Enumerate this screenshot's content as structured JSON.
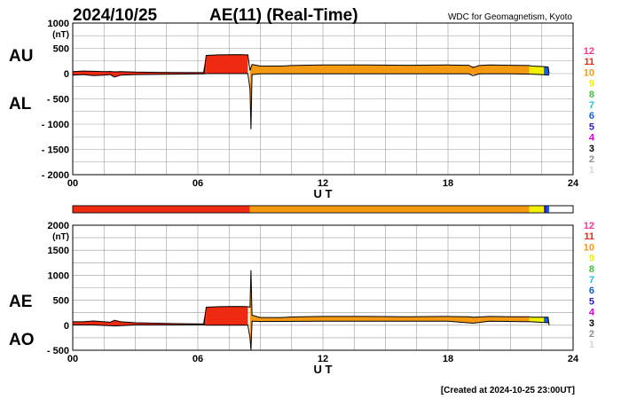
{
  "header": {
    "date": "2024/10/25",
    "title": "AE(11) (Real-Time)",
    "source": "WDC for Geomagnetism, Kyoto"
  },
  "footer": {
    "created": "[Created at 2024-10-25 23:00UT]"
  },
  "colors": {
    "grid": "#9a9a9a",
    "level_colors": {
      "1": "#d8d8d8",
      "2": "#909090",
      "3": "#000000",
      "4": "#e000e0",
      "5": "#3020c0",
      "6": "#1060e0",
      "7": "#20c0e0",
      "8": "#40c040",
      "9": "#f0f000",
      "10": "#f59a10",
      "11": "#ee2a10",
      "12": "#ff3399"
    }
  },
  "legend": {
    "levels": [
      "12",
      "11",
      "10",
      "9",
      "8",
      "7",
      "6",
      "5",
      "4",
      "3",
      "2",
      "1"
    ]
  },
  "chart_data": [
    {
      "type": "area",
      "id": "au_al",
      "xlabel": "U T",
      "ylabel_unit": "(nT)",
      "side_labels": [
        "AU",
        "AL"
      ],
      "xlim": [
        0,
        24
      ],
      "ylim": [
        -2000,
        1000
      ],
      "xticks": [
        0,
        6,
        12,
        18,
        24
      ],
      "xtick_labels": [
        "00",
        "06",
        "12",
        "18",
        "24"
      ],
      "yticks": [
        1000,
        500,
        0,
        -500,
        -1000,
        -1500,
        -2000
      ],
      "ytick_labels": [
        "1000",
        "500",
        "0",
        "- 500",
        "- 1000",
        "- 1500",
        "- 2000"
      ],
      "grid": true,
      "series": [
        {
          "name": "AU",
          "x": [
            0,
            0.5,
            1,
            1.5,
            1.8,
            2.0,
            2.3,
            3,
            4,
            5,
            6.3,
            6.4,
            7,
            8,
            8.4,
            8.5,
            8.6,
            9,
            10,
            10.5,
            11,
            12,
            14,
            16,
            18,
            19,
            19.2,
            19.5,
            20,
            21,
            21.9,
            22,
            22.5,
            22.8,
            22.85
          ],
          "values": [
            40,
            50,
            45,
            40,
            42,
            35,
            40,
            30,
            25,
            22,
            20,
            360,
            370,
            375,
            370,
            60,
            180,
            150,
            150,
            160,
            165,
            170,
            170,
            165,
            170,
            165,
            120,
            160,
            170,
            165,
            160,
            150,
            140,
            130,
            0
          ]
        },
        {
          "name": "AL",
          "x": [
            0,
            0.5,
            1,
            1.5,
            1.8,
            2.0,
            2.3,
            3,
            4,
            5,
            6.3,
            6.4,
            7,
            8,
            8.4,
            8.5,
            8.55,
            8.6,
            9,
            10,
            11,
            12,
            14,
            16,
            18,
            19,
            19.2,
            19.5,
            20,
            21,
            22,
            22.5,
            22.85
          ],
          "values": [
            -30,
            -20,
            -40,
            -30,
            -20,
            -70,
            -30,
            -20,
            -15,
            -10,
            -5,
            0,
            0,
            0,
            0,
            -300,
            -1100,
            -20,
            -5,
            -5,
            -5,
            -5,
            -5,
            -5,
            -5,
            -5,
            -40,
            -5,
            -5,
            -5,
            -10,
            -20,
            -30
          ]
        }
      ],
      "activity_bands": [
        {
          "x": [
            6.4,
            8.4
          ],
          "level": "11"
        },
        {
          "x": [
            8.5,
            10.5
          ],
          "level": "10"
        },
        {
          "x": [
            10.5,
            21.9
          ],
          "level": "10"
        },
        {
          "x": [
            21.9,
            22.6
          ],
          "level": "9"
        },
        {
          "x": [
            22.6,
            22.85
          ],
          "level": "6"
        }
      ]
    },
    {
      "type": "area",
      "id": "ae_ao",
      "xlabel": "U T",
      "ylabel_unit": "(nT)",
      "side_labels": [
        "AE",
        "AO"
      ],
      "xlim": [
        0,
        24
      ],
      "ylim": [
        -500,
        2000
      ],
      "xticks": [
        0,
        6,
        12,
        18,
        24
      ],
      "xtick_labels": [
        "00",
        "06",
        "12",
        "18",
        "24"
      ],
      "yticks": [
        2000,
        1500,
        1000,
        500,
        0,
        -500
      ],
      "ytick_labels": [
        "2000",
        "1500",
        "1000",
        "500",
        "0",
        "- 500"
      ],
      "grid": true,
      "series": [
        {
          "name": "AE",
          "x": [
            0,
            0.5,
            1,
            1.5,
            1.8,
            2.0,
            2.3,
            3,
            4,
            5,
            6.3,
            6.4,
            7,
            8,
            8.4,
            8.5,
            8.55,
            8.6,
            9,
            10,
            10.5,
            11,
            12,
            14,
            16,
            18,
            19,
            19.2,
            19.5,
            20,
            21,
            21.9,
            22,
            22.5,
            22.8,
            22.85
          ],
          "values": [
            70,
            70,
            85,
            70,
            60,
            100,
            70,
            50,
            40,
            32,
            25,
            360,
            370,
            375,
            370,
            360,
            1100,
            200,
            155,
            155,
            165,
            170,
            175,
            175,
            170,
            175,
            170,
            160,
            165,
            175,
            170,
            170,
            160,
            160,
            160,
            0
          ]
        },
        {
          "name": "AO",
          "x": [
            0,
            1,
            2,
            3,
            5,
            6.3,
            6.4,
            8.4,
            8.5,
            8.55,
            8.6,
            9,
            12,
            18,
            19.2,
            20,
            22,
            22.85
          ],
          "values": [
            5,
            5,
            -15,
            5,
            5,
            8,
            0,
            0,
            -250,
            -500,
            80,
            75,
            80,
            80,
            40,
            80,
            70,
            50
          ]
        }
      ],
      "activity_bands": [
        {
          "x": [
            6.4,
            8.4
          ],
          "level": "11"
        },
        {
          "x": [
            8.5,
            10.5
          ],
          "level": "10"
        },
        {
          "x": [
            10.5,
            21.9
          ],
          "level": "10"
        },
        {
          "x": [
            21.9,
            22.6
          ],
          "level": "9"
        },
        {
          "x": [
            22.6,
            22.85
          ],
          "level": "6"
        }
      ]
    }
  ],
  "status_bar": [
    {
      "x": [
        0,
        8.5
      ],
      "level": "11"
    },
    {
      "x": [
        8.5,
        21.9
      ],
      "level": "10"
    },
    {
      "x": [
        21.9,
        22.6
      ],
      "level": "9"
    },
    {
      "x": [
        22.6,
        22.75
      ],
      "level": "5"
    },
    {
      "x": [
        22.75,
        22.85
      ],
      "level": "6"
    }
  ]
}
